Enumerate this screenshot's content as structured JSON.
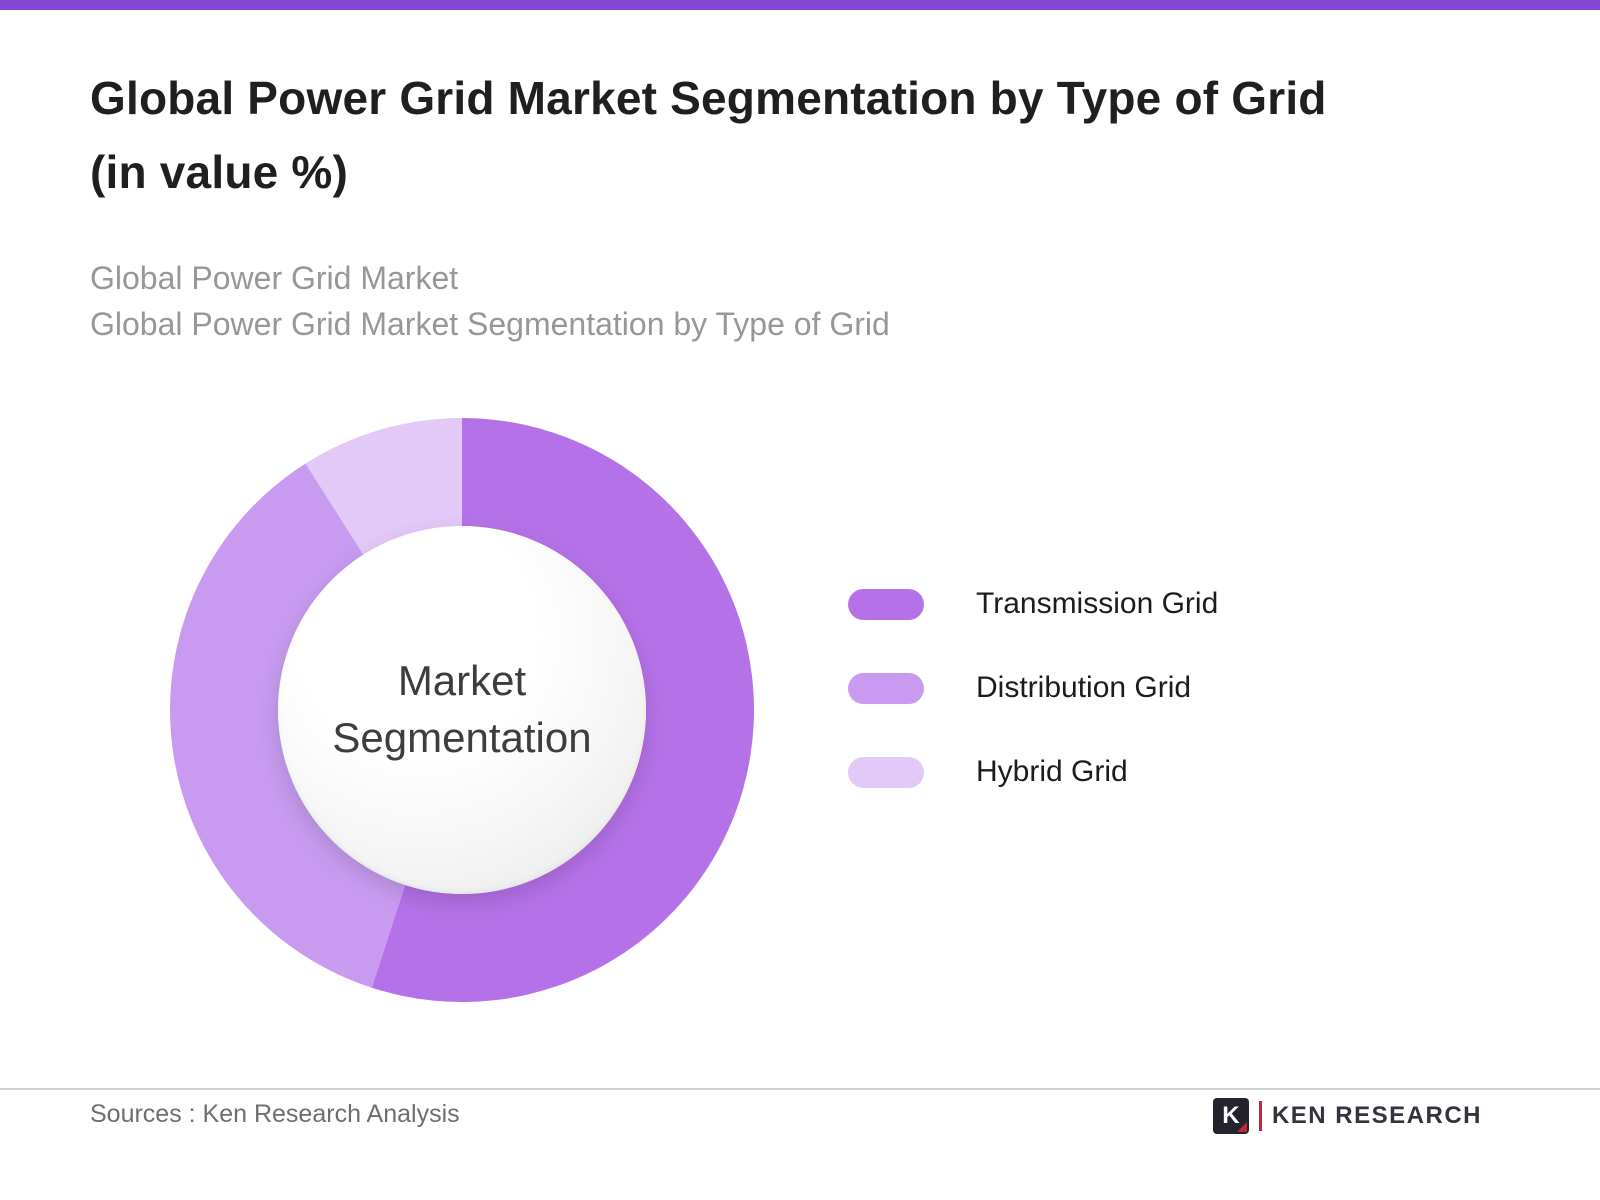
{
  "page": {
    "accent_color": "#8247d5",
    "background_color": "#ffffff"
  },
  "header": {
    "title": "Global Power Grid Market Segmentation by Type of Grid\n(in value %)",
    "subtitle": "Global Power Grid Market\nGlobal Power Grid Market Segmentation by Type of Grid"
  },
  "chart_data": {
    "type": "pie",
    "donut": true,
    "title": "Global Power Grid Market Segmentation by Type of Grid (in value %)",
    "center_label": "Market Segmentation",
    "series": [
      {
        "name": "Transmission Grid",
        "value": 55,
        "color": "#b572e8"
      },
      {
        "name": "Distribution Grid",
        "value": 36,
        "color": "#c89bf0"
      },
      {
        "name": "Hybrid Grid",
        "value": 9,
        "color": "#e3c9f8"
      }
    ],
    "start_angle_deg": 0,
    "direction": "clockwise",
    "inner_radius_ratio": 0.63,
    "legend_position": "right",
    "values_shown_on_chart": false
  },
  "footer": {
    "sources": "Sources : Ken Research Analysis",
    "logo_letter": "K",
    "logo_text": "KEN RESEARCH"
  }
}
